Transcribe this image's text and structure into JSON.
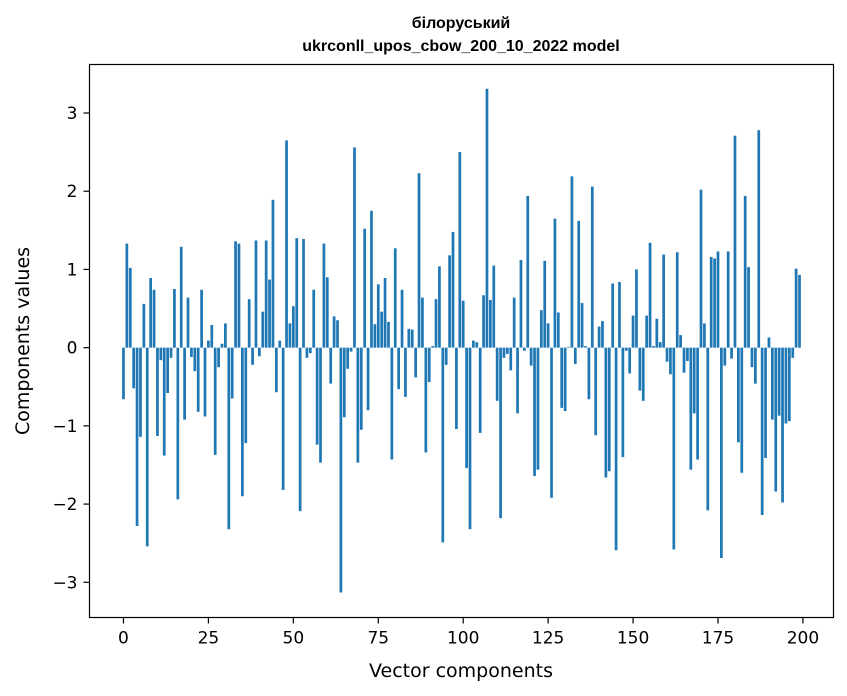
{
  "chart_data": {
    "type": "bar",
    "title_line1": "білоруський",
    "title_line2": "ukrconll_upos_cbow_200_10_2022 model",
    "xlabel": "Vector components",
    "ylabel": "Components values",
    "xlim": [
      -10,
      209
    ],
    "ylim": [
      -3.45,
      3.62
    ],
    "xticks": [
      0,
      25,
      50,
      75,
      100,
      125,
      150,
      175,
      200
    ],
    "xtick_labels": [
      "0",
      "25",
      "50",
      "75",
      "100",
      "125",
      "150",
      "175",
      "200"
    ],
    "yticks": [
      -3,
      -2,
      -1,
      0,
      1,
      2,
      3
    ],
    "ytick_labels": [
      "−3",
      "−2",
      "−1",
      "0",
      "1",
      "2",
      "3"
    ],
    "bar_color": "#1f77b4",
    "values": [
      -0.66,
      1.33,
      1.02,
      -0.52,
      -2.28,
      -1.14,
      0.56,
      -2.54,
      0.89,
      0.74,
      -1.13,
      -0.16,
      -1.38,
      -0.58,
      -0.13,
      0.75,
      -1.94,
      1.29,
      -0.92,
      0.64,
      -0.12,
      -0.3,
      -0.82,
      0.74,
      -0.88,
      0.09,
      0.29,
      -1.37,
      -0.25,
      0.05,
      0.31,
      -2.32,
      -0.65,
      1.36,
      1.33,
      -1.9,
      -1.22,
      0.62,
      -0.22,
      1.37,
      -0.11,
      0.46,
      1.37,
      0.87,
      1.89,
      -0.57,
      0.09,
      -1.82,
      2.65,
      0.31,
      0.53,
      1.4,
      -2.09,
      1.39,
      -0.13,
      -0.07,
      0.74,
      -1.24,
      -1.47,
      1.33,
      0.9,
      -0.46,
      0.4,
      0.35,
      -3.13,
      -0.89,
      -0.27,
      -0.05,
      2.56,
      -1.47,
      -1.05,
      1.52,
      -0.8,
      1.75,
      0.3,
      0.81,
      0.46,
      0.89,
      0.33,
      -1.43,
      1.27,
      -0.53,
      0.74,
      -0.63,
      0.24,
      0.23,
      -0.38,
      2.23,
      0.64,
      -1.34,
      -0.44,
      0.02,
      0.62,
      1.04,
      -2.49,
      -0.22,
      1.18,
      1.48,
      -1.04,
      2.5,
      0.6,
      -1.54,
      -2.32,
      0.09,
      0.07,
      -1.09,
      0.67,
      3.31,
      0.61,
      1.05,
      -0.68,
      -2.18,
      -0.13,
      -0.08,
      -0.29,
      0.64,
      -0.84,
      1.12,
      -0.04,
      1.94,
      -0.23,
      -1.64,
      -1.56,
      0.48,
      1.11,
      0.31,
      -1.92,
      1.65,
      0.45,
      -0.77,
      -0.81,
      0.01,
      2.19,
      -0.21,
      1.62,
      0.57,
      0.02,
      -0.66,
      2.06,
      -1.12,
      0.27,
      0.34,
      -1.66,
      -1.58,
      0.82,
      -2.59,
      0.84,
      -1.4,
      -0.04,
      -0.33,
      0.41,
      1.0,
      -0.55,
      -0.68,
      0.41,
      1.34,
      0.02,
      0.37,
      0.07,
      1.19,
      -0.18,
      -0.34,
      -2.58,
      1.22,
      0.16,
      -0.32,
      -0.17,
      -1.56,
      -0.84,
      -1.43,
      2.02,
      0.31,
      -2.08,
      1.16,
      1.14,
      1.23,
      -2.69,
      -0.23,
      1.23,
      -0.14,
      2.71,
      -1.21,
      -1.6,
      1.94,
      1.03,
      -0.25,
      -0.46,
      2.78,
      -2.14,
      -1.41,
      0.13,
      -0.92,
      -1.84,
      -0.87,
      -1.98,
      -0.97,
      -0.94,
      -0.13,
      1.01,
      0.93
    ]
  }
}
